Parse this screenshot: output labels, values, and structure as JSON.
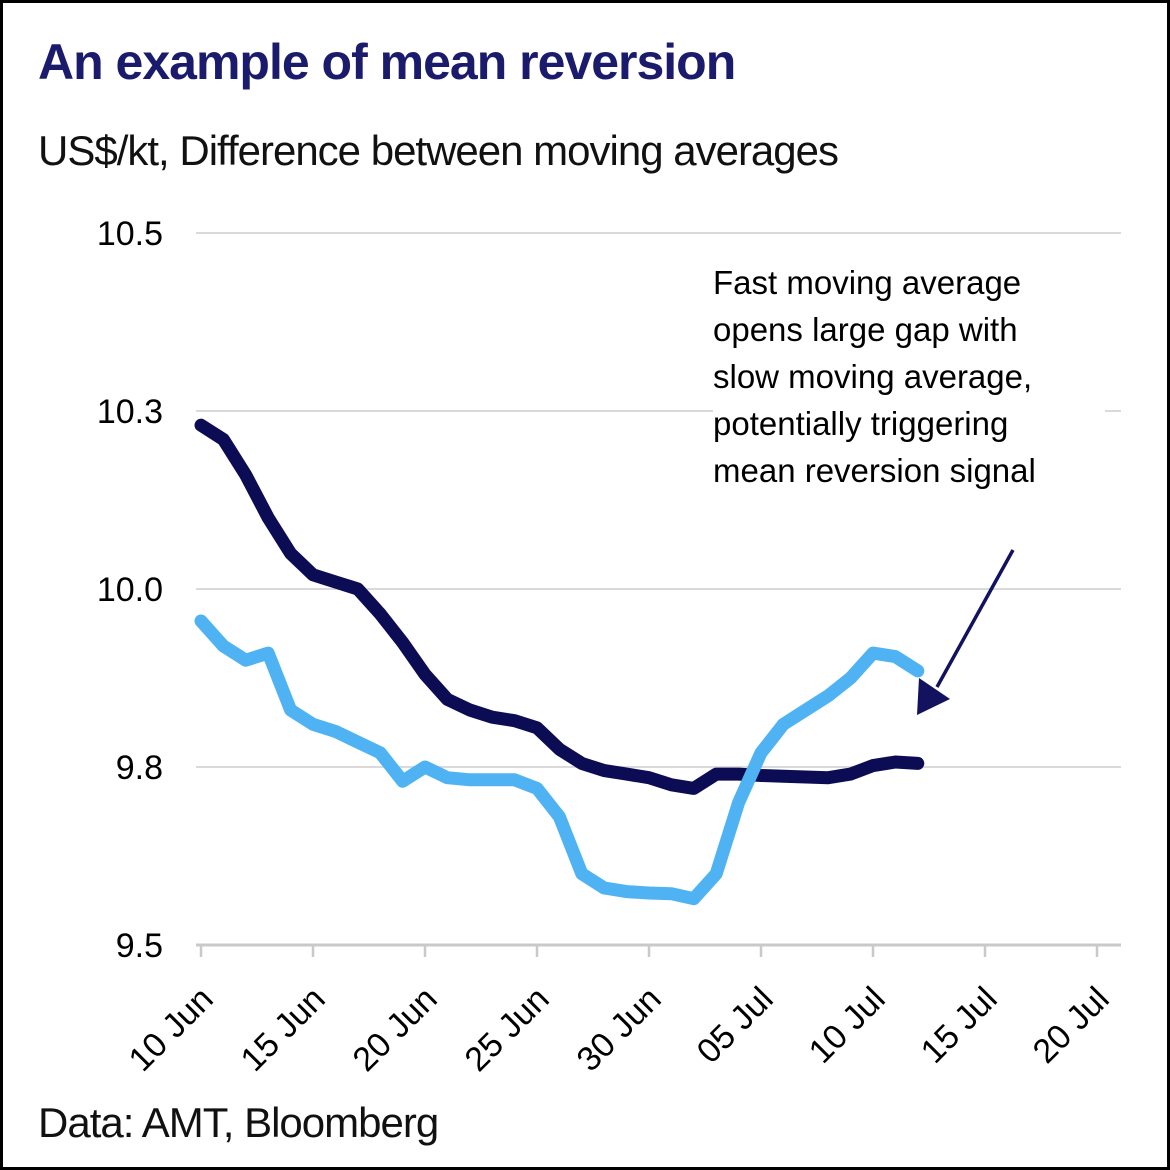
{
  "header": {
    "title": "An example of mean reversion",
    "subtitle": "US$/kt, Difference between moving averages"
  },
  "footer": {
    "source": "Data: AMT, Bloomberg"
  },
  "chart_data": {
    "type": "line",
    "title": "An example of mean reversion",
    "subtitle": "US$/kt, Difference between moving averages",
    "ylabel": "US$/kt",
    "grid": "horizontal-on",
    "legend_position": "none",
    "ylim": [
      9.5,
      10.5
    ],
    "y_gridline_values": [
      10.5,
      10.25,
      10.0,
      9.75,
      9.5
    ],
    "y_tick_labels": [
      "10.5",
      "10.3",
      "10.0",
      "9.8",
      "9.5"
    ],
    "x_tick_labels": [
      "10 Jun",
      "15 Jun",
      "20 Jun",
      "25 Jun",
      "30 Jun",
      "05 Jul",
      "10 Jul",
      "15 Jul",
      "20 Jul"
    ],
    "x_tick_days": [
      0,
      5,
      10,
      15,
      20,
      25,
      30,
      35,
      40
    ],
    "x_axis_range_days": [
      0,
      40
    ],
    "dates": [
      "10 Jun",
      "11 Jun",
      "12 Jun",
      "13 Jun",
      "14 Jun",
      "15 Jun",
      "16 Jun",
      "17 Jun",
      "18 Jun",
      "19 Jun",
      "20 Jun",
      "21 Jun",
      "22 Jun",
      "23 Jun",
      "24 Jun",
      "25 Jun",
      "26 Jun",
      "27 Jun",
      "28 Jun",
      "29 Jun",
      "30 Jun",
      "01 Jul",
      "02 Jul",
      "03 Jul",
      "04 Jul",
      "05 Jul",
      "06 Jul",
      "07 Jul",
      "08 Jul",
      "09 Jul",
      "10 Jul",
      "11 Jul",
      "12 Jul"
    ],
    "series": [
      {
        "name": "Slow moving average",
        "color": "#0c0c55",
        "values": [
          10.23,
          10.21,
          10.16,
          10.1,
          10.05,
          10.02,
          10.01,
          10.0,
          9.965,
          9.925,
          9.88,
          9.845,
          9.83,
          9.82,
          9.815,
          9.805,
          9.775,
          9.755,
          9.745,
          9.74,
          9.735,
          9.725,
          9.72,
          9.74,
          9.74,
          9.738,
          9.737,
          9.736,
          9.735,
          9.74,
          9.752,
          9.757,
          9.755
        ]
      },
      {
        "name": "Fast moving average",
        "color": "#4fb3f3",
        "values": [
          9.955,
          9.92,
          9.9,
          9.91,
          9.83,
          9.81,
          9.8,
          9.785,
          9.77,
          9.73,
          9.75,
          9.735,
          9.732,
          9.732,
          9.732,
          9.72,
          9.68,
          9.6,
          9.58,
          9.575,
          9.573,
          9.572,
          9.565,
          9.6,
          9.7,
          9.77,
          9.81,
          9.83,
          9.85,
          9.875,
          9.91,
          9.905,
          9.885
        ]
      }
    ],
    "annotation": {
      "lines": [
        "Fast moving average",
        "opens large gap with",
        "slow moving average,",
        "potentially triggering",
        "mean reversion signal"
      ],
      "arrow_target": "end of fast moving average line"
    }
  },
  "colors": {
    "title": "#1b1b6e",
    "text": "#111111",
    "gridline": "#dadada",
    "axis": "#c9c9c9",
    "slow_line": "#0c0c55",
    "fast_line": "#4fb3f3",
    "arrow": "#12125e"
  }
}
